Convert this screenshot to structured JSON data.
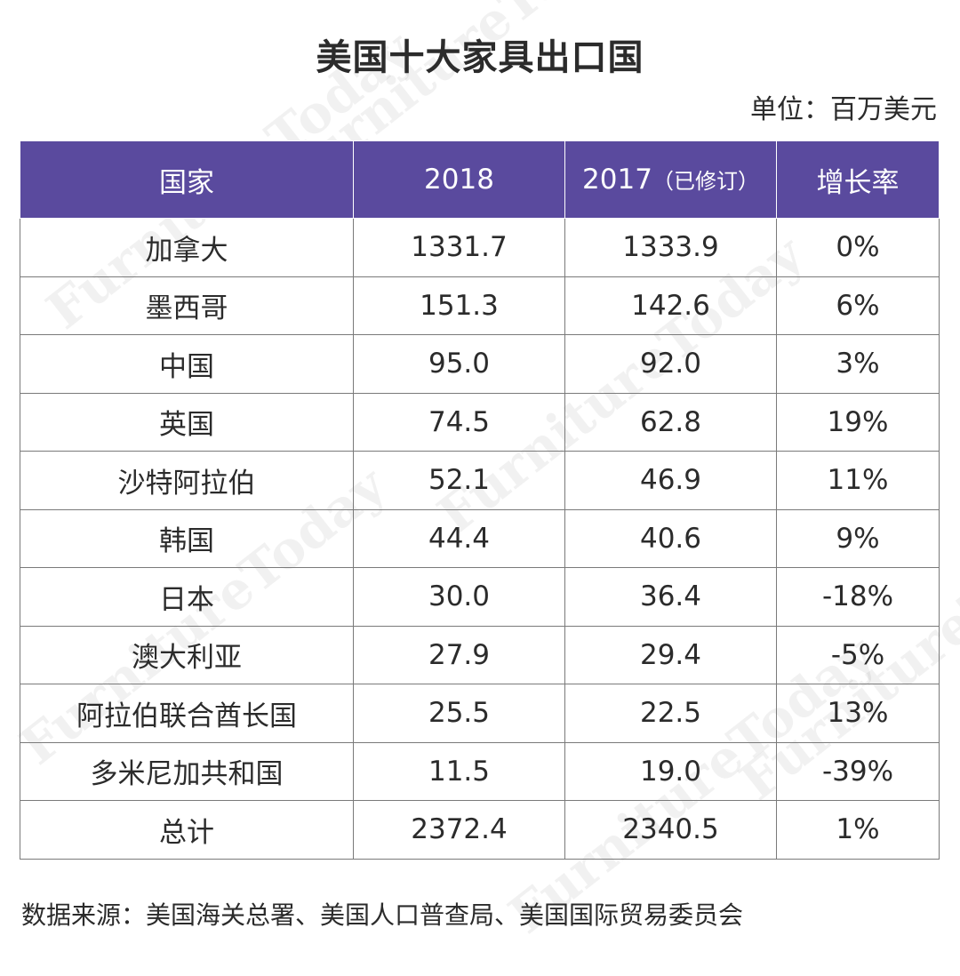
{
  "title": "美国十大家具出口国",
  "unit_label": "单位：百万美元",
  "watermark_text": "FurnitureToday",
  "header": {
    "country": "国家",
    "y2018": "2018",
    "y2017": "2017",
    "y2017_note": "（已修订）",
    "growth": "增长率"
  },
  "rows": [
    {
      "country": "加拿大",
      "y2018": "1331.7",
      "y2017": "1333.9",
      "growth": "0%"
    },
    {
      "country": "墨西哥",
      "y2018": "151.3",
      "y2017": "142.6",
      "growth": "6%"
    },
    {
      "country": "中国",
      "y2018": "95.0",
      "y2017": "92.0",
      "growth": "3%"
    },
    {
      "country": "英国",
      "y2018": "74.5",
      "y2017": "62.8",
      "growth": "19%"
    },
    {
      "country": "沙特阿拉伯",
      "y2018": "52.1",
      "y2017": "46.9",
      "growth": "11%"
    },
    {
      "country": "韩国",
      "y2018": "44.4",
      "y2017": "40.6",
      "growth": "9%"
    },
    {
      "country": "日本",
      "y2018": "30.0",
      "y2017": "36.4",
      "growth": "-18%"
    },
    {
      "country": "澳大利亚",
      "y2018": "27.9",
      "y2017": "29.4",
      "growth": "-5%"
    },
    {
      "country": "阿拉伯联合酋长国",
      "y2018": "25.5",
      "y2017": "22.5",
      "growth": "13%"
    },
    {
      "country": "多米尼加共和国",
      "y2018": "11.5",
      "y2017": "19.0",
      "growth": "-39%"
    },
    {
      "country": "总计",
      "y2018": "2372.4",
      "y2017": "2340.5",
      "growth": "1%"
    }
  ],
  "source": "数据来源：美国海关总署、美国人口普查局、美国国际贸易委员会",
  "colors": {
    "header_bg": "#5a4a9e",
    "header_text": "#ffffff",
    "border": "#7a7a7a",
    "text": "#2b2b2b"
  },
  "chart_data": {
    "type": "table",
    "title": "美国十大家具出口国",
    "unit": "单位：百万美元",
    "columns": [
      "国家",
      "2018",
      "2017（已修订）",
      "增长率"
    ],
    "categories": [
      "加拿大",
      "墨西哥",
      "中国",
      "英国",
      "沙特阿拉伯",
      "韩国",
      "日本",
      "澳大利亚",
      "阿拉伯联合酋长国",
      "多米尼加共和国",
      "总计"
    ],
    "series": [
      {
        "name": "2018",
        "values": [
          1331.7,
          151.3,
          95.0,
          74.5,
          52.1,
          44.4,
          30.0,
          27.9,
          25.5,
          11.5,
          2372.4
        ]
      },
      {
        "name": "2017（已修订）",
        "values": [
          1333.9,
          142.6,
          92.0,
          62.8,
          46.9,
          40.6,
          36.4,
          29.4,
          22.5,
          19.0,
          2340.5
        ]
      },
      {
        "name": "增长率",
        "values": [
          "0%",
          "6%",
          "3%",
          "19%",
          "11%",
          "9%",
          "-18%",
          "-5%",
          "13%",
          "-39%",
          "1%"
        ]
      }
    ],
    "source": "数据来源：美国海关总署、美国人口普查局、美国国际贸易委员会"
  }
}
